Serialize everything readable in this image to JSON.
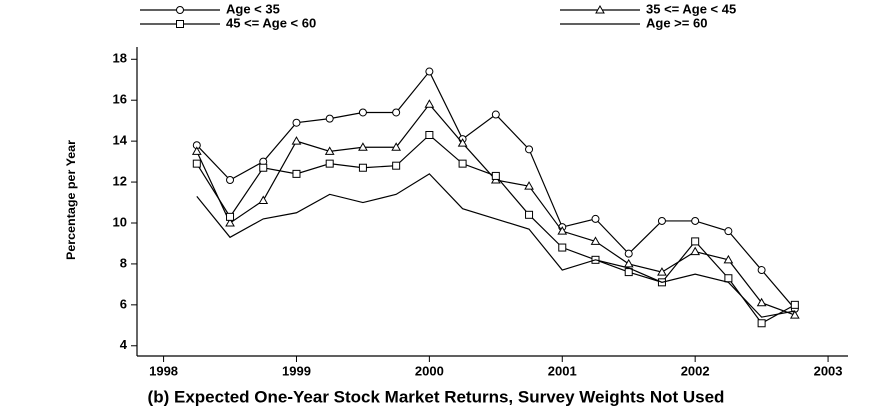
{
  "chart_data": {
    "type": "line",
    "caption": "(b) Expected One-Year Stock Market Returns, Survey Weights Not Used",
    "ylabel": "Percentage per Year",
    "x": [
      1998.25,
      1998.5,
      1998.75,
      1999,
      1999.25,
      1999.5,
      1999.75,
      2000,
      2000.25,
      2000.5,
      2000.75,
      2001,
      2001.25,
      2001.5,
      2001.75,
      2002,
      2002.25,
      2002.5,
      2002.75
    ],
    "series": [
      {
        "name": "Age < 35",
        "color": "#000000",
        "marker": "circle",
        "values": [
          13.8,
          12.1,
          13.0,
          14.9,
          15.1,
          15.4,
          15.4,
          17.4,
          14.1,
          15.3,
          13.6,
          9.8,
          10.2,
          8.5,
          10.1,
          10.1,
          9.6,
          7.7,
          5.8
        ]
      },
      {
        "name": "35 <= Age < 45",
        "color": "#000000",
        "marker": "triangle",
        "values": [
          13.5,
          10.0,
          11.1,
          14.0,
          13.5,
          13.7,
          13.7,
          15.8,
          13.9,
          12.1,
          11.8,
          9.6,
          9.1,
          8.0,
          7.6,
          8.6,
          8.2,
          6.1,
          5.5
        ]
      },
      {
        "name": "45 <= Age < 60",
        "color": "#000000",
        "marker": "square",
        "values": [
          12.9,
          10.3,
          12.7,
          12.4,
          12.9,
          12.7,
          12.8,
          14.3,
          12.9,
          12.3,
          10.4,
          8.8,
          8.2,
          7.6,
          7.1,
          9.1,
          7.3,
          5.1,
          6.0
        ]
      },
      {
        "name": "Age >= 60",
        "color": "#000000",
        "marker": "none",
        "values": [
          11.3,
          9.3,
          10.2,
          10.5,
          11.4,
          11.0,
          11.4,
          12.4,
          10.7,
          10.2,
          9.7,
          7.7,
          8.2,
          7.8,
          7.1,
          7.5,
          7.1,
          5.4,
          5.7
        ]
      }
    ],
    "xlim": [
      1997.8,
      2003.15
    ],
    "xticks": [
      1998,
      1999,
      2000,
      2001,
      2002,
      2003
    ],
    "ylim": [
      3.5,
      18.6
    ],
    "yticks": [
      4,
      6,
      8,
      10,
      12,
      14,
      16,
      18
    ]
  }
}
